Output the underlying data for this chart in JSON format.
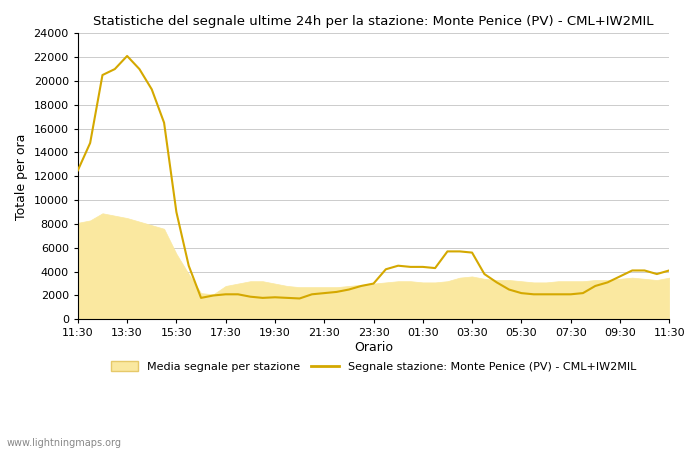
{
  "title": "Statistiche del segnale ultime 24h per la stazione: Monte Penice (PV) - CML+IW2MIL",
  "xlabel": "Orario",
  "ylabel": "Totale per ora",
  "ylim": [
    0,
    24000
  ],
  "yticks": [
    0,
    2000,
    4000,
    6000,
    8000,
    10000,
    12000,
    14000,
    16000,
    18000,
    20000,
    22000,
    24000
  ],
  "xtick_labels": [
    "11:30",
    "13:30",
    "15:30",
    "17:30",
    "19:30",
    "21:30",
    "23:30",
    "01:30",
    "03:30",
    "05:30",
    "07:30",
    "09:30",
    "11:30"
  ],
  "line_color": "#D4A800",
  "fill_color": "#FAE8A0",
  "fill_edge_color": "#E6C96A",
  "background_color": "#FFFFFF",
  "grid_color": "#CCCCCC",
  "watermark": "www.lightningmaps.org",
  "legend_fill_label": "Media segnale per stazione",
  "legend_line_label": "Segnale stazione: Monte Penice (PV) - CML+IW2MIL",
  "signal_x": [
    0,
    1,
    2,
    3,
    4,
    5,
    6,
    7,
    8,
    9,
    10,
    11,
    12,
    13,
    14,
    15,
    16,
    17,
    18,
    19,
    20,
    21,
    22,
    23,
    24,
    25,
    26,
    27,
    28,
    29,
    30,
    31,
    32,
    33,
    34,
    35,
    36,
    37,
    38,
    39,
    40,
    41,
    42,
    43,
    44,
    45,
    46,
    47,
    48
  ],
  "signal_y": [
    12500,
    14800,
    20500,
    21000,
    22100,
    21000,
    19300,
    16500,
    9000,
    4500,
    1800,
    2000,
    2100,
    2100,
    1900,
    1800,
    1850,
    1800,
    1750,
    2100,
    2200,
    2300,
    2500,
    2800,
    3000,
    4200,
    4500,
    4400,
    4400,
    4300,
    5700,
    5700,
    5600,
    3800,
    3100,
    2500,
    2200,
    2100,
    2100,
    2100,
    2100,
    2200,
    2800,
    3100,
    3600,
    4100,
    4100,
    3800,
    4100
  ],
  "avg_x": [
    0,
    1,
    2,
    3,
    4,
    5,
    6,
    7,
    8,
    9,
    10,
    11,
    12,
    13,
    14,
    15,
    16,
    17,
    18,
    19,
    20,
    21,
    22,
    23,
    24,
    25,
    26,
    27,
    28,
    29,
    30,
    31,
    32,
    33,
    34,
    35,
    36,
    37,
    38,
    39,
    40,
    41,
    42,
    43,
    44,
    45,
    46,
    47,
    48
  ],
  "avg_y": [
    8100,
    8300,
    8900,
    8700,
    8500,
    8200,
    7900,
    7600,
    5500,
    3800,
    2200,
    2100,
    2800,
    3000,
    3200,
    3200,
    3000,
    2800,
    2700,
    2700,
    2700,
    2700,
    2800,
    2900,
    3000,
    3100,
    3200,
    3200,
    3100,
    3100,
    3200,
    3500,
    3600,
    3400,
    3300,
    3300,
    3200,
    3100,
    3100,
    3200,
    3200,
    3200,
    3300,
    3300,
    3400,
    3500,
    3400,
    3300,
    3500
  ]
}
